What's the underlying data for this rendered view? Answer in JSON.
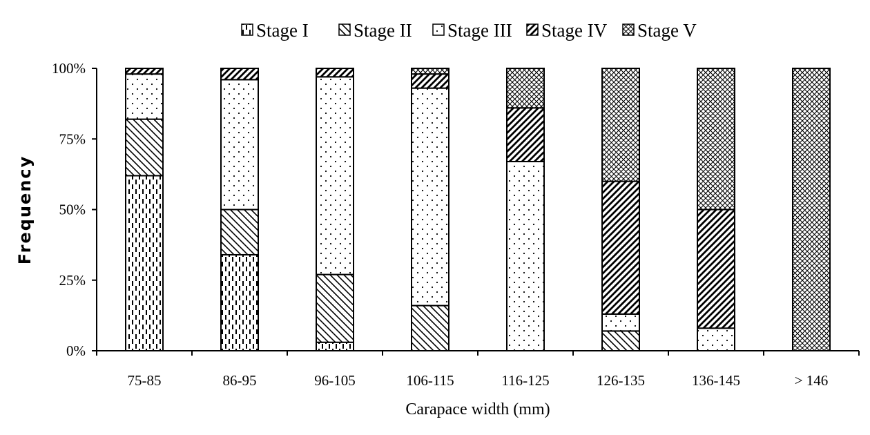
{
  "chart_data": {
    "type": "bar",
    "stacked": true,
    "normalized": true,
    "categories": [
      "75-85",
      "86-95",
      "96-105",
      "106-115",
      "116-125",
      "126-135",
      "136-145",
      "> 146"
    ],
    "series": [
      {
        "name": "Stage  I",
        "values": [
          62,
          34,
          3,
          0,
          0,
          0,
          0,
          0
        ]
      },
      {
        "name": "Stage  II",
        "values": [
          20,
          16,
          24,
          16,
          0,
          7,
          0,
          0
        ]
      },
      {
        "name": "Stage  III",
        "values": [
          16,
          46,
          70,
          77,
          67,
          6,
          8,
          0
        ]
      },
      {
        "name": "Stage  IV",
        "values": [
          2,
          4,
          3,
          5,
          19,
          47,
          42,
          0
        ]
      },
      {
        "name": "Stage  V",
        "values": [
          0,
          0,
          0,
          2,
          14,
          40,
          50,
          100
        ]
      }
    ],
    "xlabel": "Carapace width (mm)",
    "ylabel": "Frequency",
    "ylim": [
      0,
      100
    ],
    "yticks": [
      "0%",
      "25%",
      "50%",
      "75%",
      "100%"
    ],
    "legend_position": "top",
    "grid": false
  }
}
